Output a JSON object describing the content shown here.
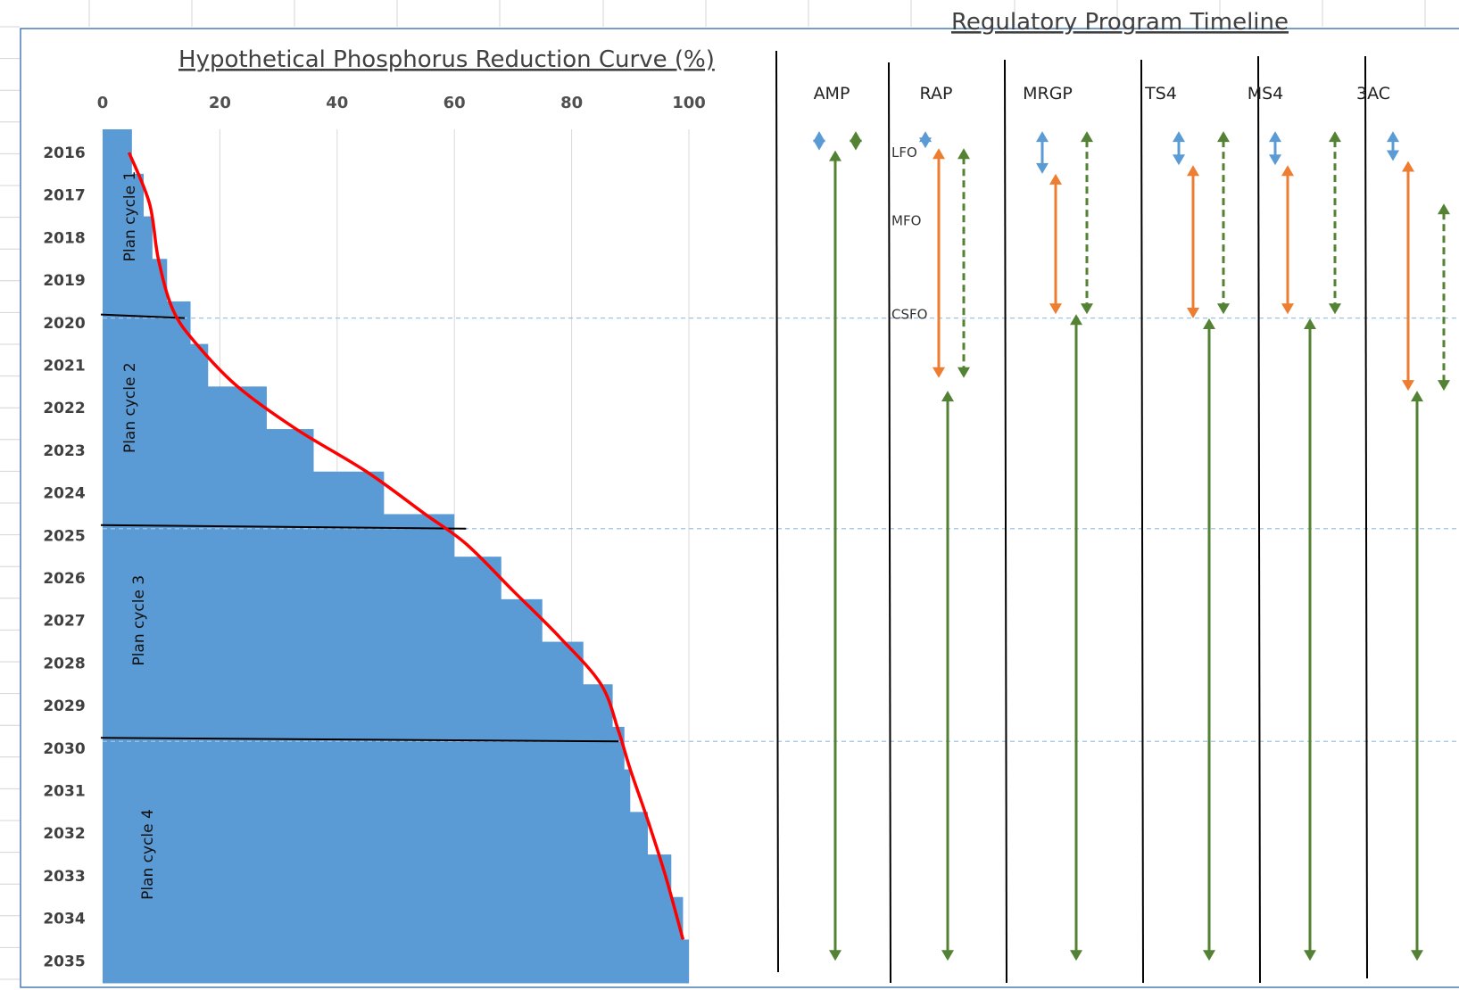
{
  "chart_data": {
    "type": "bar",
    "orientation": "horizontal",
    "title": "Hypothetical Phosphorus Reduction Curve (%)",
    "categories": [
      "2016",
      "2017",
      "2018",
      "2019",
      "2020",
      "2021",
      "2022",
      "2023",
      "2024",
      "2025",
      "2026",
      "2027",
      "2028",
      "2029",
      "2030",
      "2031",
      "2032",
      "2033",
      "2034",
      "2035"
    ],
    "values": [
      5,
      7,
      8.5,
      11,
      15,
      18,
      28,
      36,
      48,
      60,
      68,
      75,
      82,
      87,
      89,
      90,
      93,
      97,
      99,
      100
    ],
    "xlim": [
      0,
      100
    ],
    "xticks": [
      "0",
      "20",
      "40",
      "60",
      "80",
      "100"
    ],
    "bar_color": "#5b9bd5",
    "curve_color": "#ff0000",
    "curve": [
      [
        4.5,
        2016
      ],
      [
        8,
        2017.2
      ],
      [
        9.5,
        2018.5
      ],
      [
        12,
        2019.7
      ],
      [
        16,
        2020.5
      ],
      [
        23,
        2021.5
      ],
      [
        33,
        2022.5
      ],
      [
        45,
        2023.5
      ],
      [
        55,
        2024.5
      ],
      [
        62,
        2025.2
      ],
      [
        70,
        2026.3
      ],
      [
        78,
        2027.4
      ],
      [
        85,
        2028.5
      ],
      [
        88,
        2029.6
      ],
      [
        90,
        2030.5
      ],
      [
        93,
        2031.7
      ],
      [
        96,
        2033
      ],
      [
        99,
        2034.5
      ]
    ],
    "plan_cycles": [
      {
        "label": "Plan cycle 1",
        "from": 2016,
        "to": 2019
      },
      {
        "label": "Plan cycle 2",
        "from": 2020,
        "to": 2024
      },
      {
        "label": "Plan cycle 3",
        "from": 2025,
        "to": 2029
      },
      {
        "label": "Plan cycle 4",
        "from": 2030,
        "to": 2035
      }
    ],
    "cycle_boundaries": [
      {
        "year": 2019.85,
        "x_end": 14
      },
      {
        "year": 2024.8,
        "x_end": 62
      },
      {
        "year": 2029.8,
        "x_end": 88
      }
    ],
    "grid": true
  },
  "timeline": {
    "title": "Regulatory Program Timeline",
    "programs": [
      "AMP",
      "RAP",
      "MRGP",
      "TS4",
      "MS4",
      "3AC"
    ],
    "flood_labels": [
      "LFO",
      "MFO",
      "CSFO"
    ],
    "colors": {
      "blue": "#5b9bd5",
      "orange": "#ed7d31",
      "green": "#548235",
      "divider": "#000000"
    },
    "arrows": [
      {
        "program": "AMP",
        "color": "blue",
        "dashed": false,
        "from": 2015.5,
        "to": 2015.95
      },
      {
        "program": "AMP",
        "color": "green",
        "dashed": true,
        "from": 2015.5,
        "to": 2015.95
      },
      {
        "program": "AMP",
        "color": "green",
        "dashed": false,
        "from": 2015.95,
        "to": 2035
      },
      {
        "program": "RAP",
        "color": "blue",
        "dashed": false,
        "from": 2015.5,
        "to": 2015.9
      },
      {
        "program": "RAP",
        "color": "orange",
        "dashed": false,
        "from": 2015.9,
        "to": 2021.3
      },
      {
        "program": "RAP",
        "color": "green",
        "dashed": true,
        "from": 2015.9,
        "to": 2021.3
      },
      {
        "program": "RAP",
        "color": "green",
        "dashed": false,
        "from": 2021.6,
        "to": 2035
      },
      {
        "program": "MRGP",
        "color": "blue",
        "dashed": false,
        "from": 2015.5,
        "to": 2016.5
      },
      {
        "program": "MRGP",
        "color": "orange",
        "dashed": false,
        "from": 2016.5,
        "to": 2019.8
      },
      {
        "program": "MRGP",
        "color": "green",
        "dashed": true,
        "from": 2015.5,
        "to": 2019.8
      },
      {
        "program": "MRGP",
        "color": "green",
        "dashed": false,
        "from": 2019.8,
        "to": 2035
      },
      {
        "program": "TS4",
        "color": "blue",
        "dashed": false,
        "from": 2015.5,
        "to": 2016.3
      },
      {
        "program": "TS4",
        "color": "orange",
        "dashed": false,
        "from": 2016.3,
        "to": 2019.9
      },
      {
        "program": "TS4",
        "color": "green",
        "dashed": true,
        "from": 2015.5,
        "to": 2019.8
      },
      {
        "program": "TS4",
        "color": "green",
        "dashed": false,
        "from": 2019.9,
        "to": 2035
      },
      {
        "program": "MS4",
        "color": "blue",
        "dashed": false,
        "from": 2015.5,
        "to": 2016.3
      },
      {
        "program": "MS4",
        "color": "orange",
        "dashed": false,
        "from": 2016.3,
        "to": 2019.8
      },
      {
        "program": "MS4",
        "color": "green",
        "dashed": true,
        "from": 2015.5,
        "to": 2019.8
      },
      {
        "program": "MS4",
        "color": "green",
        "dashed": false,
        "from": 2019.9,
        "to": 2035
      },
      {
        "program": "3AC",
        "color": "blue",
        "dashed": false,
        "from": 2015.5,
        "to": 2016.2
      },
      {
        "program": "3AC",
        "color": "orange",
        "dashed": false,
        "from": 2016.2,
        "to": 2021.6
      },
      {
        "program": "3AC",
        "color": "green",
        "dashed": true,
        "from": 2017.2,
        "to": 2021.6
      },
      {
        "program": "3AC",
        "color": "green",
        "dashed": false,
        "from": 2021.6,
        "to": 2035
      }
    ]
  }
}
